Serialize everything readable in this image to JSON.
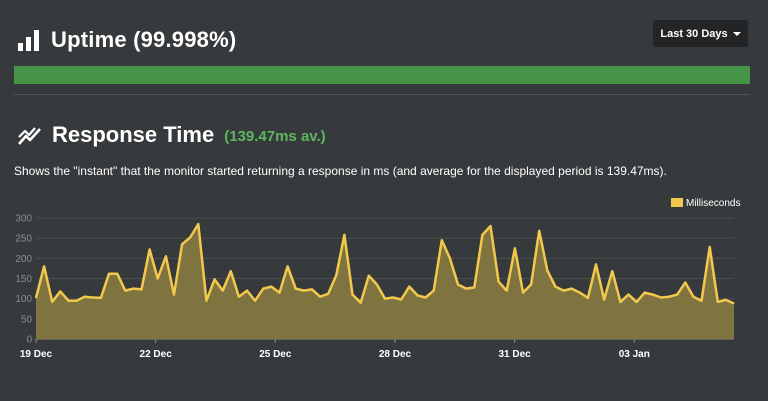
{
  "uptime": {
    "title": "Uptime (99.998%)",
    "bar_color": "#459448",
    "range_button": "Last 30 Days"
  },
  "response": {
    "title": "Response Time",
    "average": "(139.47ms av.)",
    "description": "Shows the \"instant\" that the monitor started returning a response in ms (and average for the displayed period is 139.47ms)."
  },
  "colors": {
    "background": "#373a3c",
    "accent_green": "#5cb85c",
    "series_line": "#f2c94c",
    "series_fill": "#7f7340"
  },
  "icons": {
    "uptime": "bar-chart-icon",
    "response": "line-chart-icon"
  },
  "chart_data": {
    "type": "area",
    "legend": "top-right",
    "grid": true,
    "ylim": [
      0,
      300
    ],
    "yticks": [
      0,
      50,
      100,
      150,
      200,
      250,
      300
    ],
    "xlim": [
      0,
      17.5
    ],
    "xticks": [
      {
        "label": "19 Dec",
        "x": 0
      },
      {
        "label": "22 Dec",
        "x": 3
      },
      {
        "label": "25 Dec",
        "x": 6
      },
      {
        "label": "28 Dec",
        "x": 9
      },
      {
        "label": "31 Dec",
        "x": 12
      },
      {
        "label": "03 Jan",
        "x": 15
      }
    ],
    "series": [
      {
        "name": "Milliseconds",
        "values": [
          102,
          180,
          92,
          118,
          95,
          95,
          105,
          103,
          102,
          162,
          162,
          120,
          125,
          123,
          222,
          150,
          205,
          110,
          235,
          252,
          285,
          95,
          148,
          120,
          168,
          105,
          120,
          95,
          125,
          130,
          115,
          180,
          125,
          120,
          123,
          105,
          112,
          158,
          258,
          110,
          90,
          157,
          135,
          100,
          103,
          98,
          130,
          108,
          103,
          120,
          245,
          200,
          135,
          125,
          128,
          258,
          280,
          142,
          120,
          225,
          115,
          135,
          268,
          170,
          130,
          120,
          125,
          115,
          102,
          185,
          98,
          168,
          92,
          110,
          92,
          115,
          110,
          103,
          105,
          110,
          140,
          105,
          95,
          228,
          92,
          97,
          88
        ]
      }
    ]
  }
}
